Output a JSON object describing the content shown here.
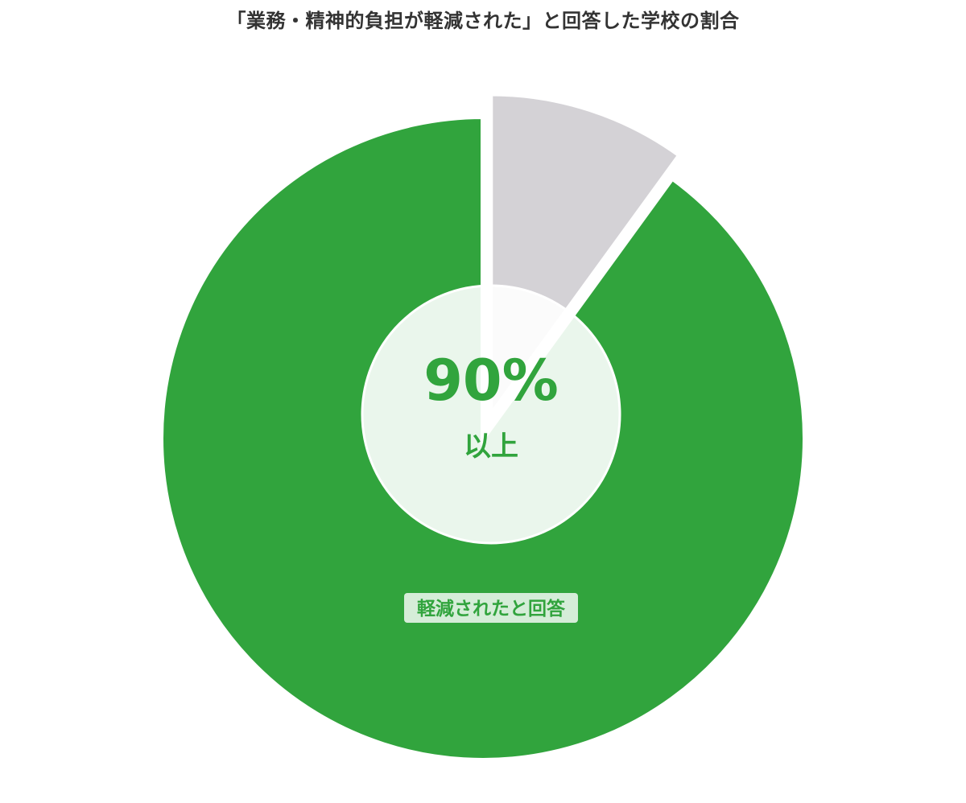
{
  "chart_data": {
    "type": "pie",
    "title": "「業務・精神的負担が軽減された」と回答した学校の割合",
    "slices": [
      {
        "label": "軽減されたと回答",
        "value": 90,
        "color": "#31a43d"
      },
      {
        "label": "",
        "value": 10,
        "color": "#d4d2d6",
        "exploded": true
      }
    ],
    "center_value": "90%",
    "center_sub": "以上",
    "donut_center_color": "#eaf5ec"
  }
}
